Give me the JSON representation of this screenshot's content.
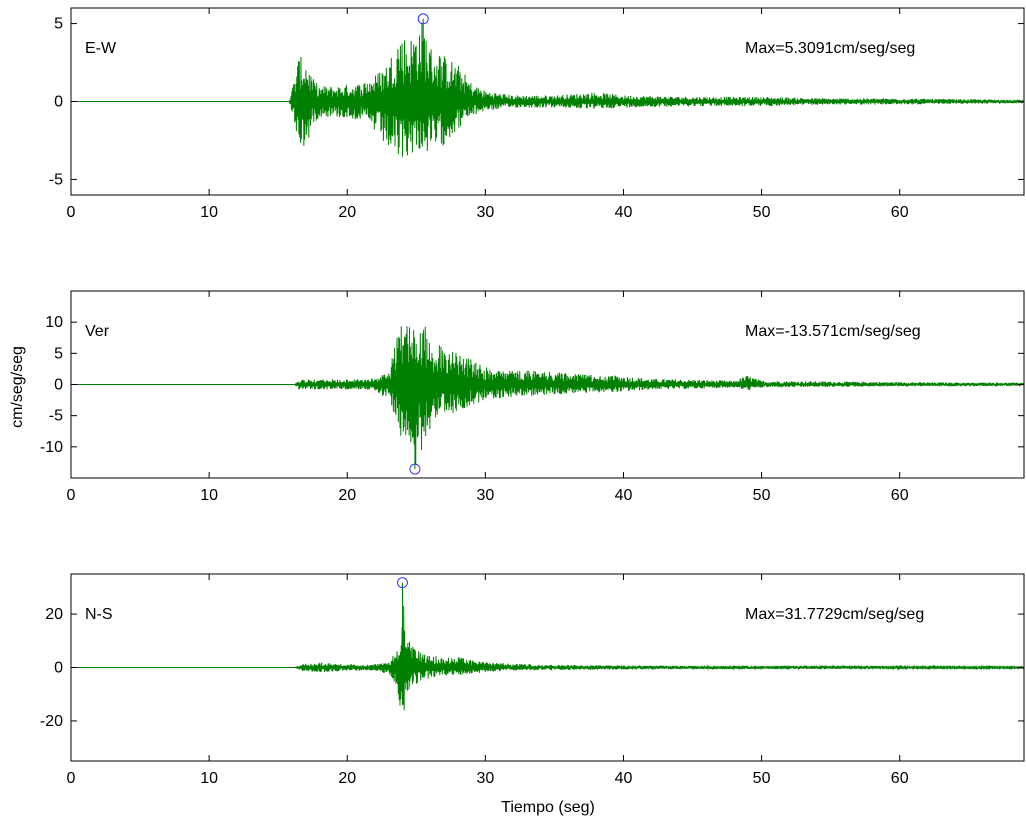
{
  "figure": {
    "ylabel": "cm/seg/seg",
    "xlabel": "Tiempo (seg)"
  },
  "colors": {
    "trace": "#008000",
    "marker": "#3333ff",
    "axes": "#000000",
    "background": "#ffffff"
  },
  "chart_data": [
    {
      "type": "line",
      "label": "E-W",
      "annotation": "Max=5.3091cm/seg/seg",
      "xlim": [
        0,
        69
      ],
      "ylim": [
        -6,
        6
      ],
      "xticks": [
        0,
        10,
        20,
        30,
        40,
        50,
        60
      ],
      "yticks": [
        -5,
        0,
        5
      ],
      "peak": {
        "x": 25.5,
        "y": 5.3091
      },
      "envelope": {
        "x": [
          0,
          15.8,
          16,
          16.5,
          17,
          17.5,
          18,
          19,
          20,
          21,
          22,
          23,
          23.8,
          24.5,
          25,
          25.5,
          26,
          27,
          28,
          29,
          30,
          32,
          35,
          38,
          40,
          45,
          50,
          55,
          60,
          65,
          69
        ],
        "upper": [
          0,
          0,
          0.8,
          2.9,
          2.8,
          1.5,
          1.0,
          1.0,
          1.1,
          1.2,
          1.7,
          2.6,
          4.5,
          4.0,
          4.8,
          5.3091,
          3.6,
          3.0,
          2.4,
          1.2,
          0.7,
          0.4,
          0.4,
          0.6,
          0.4,
          0.3,
          0.3,
          0.2,
          0.2,
          0.15,
          0.1
        ],
        "lower": [
          0,
          0,
          -0.8,
          -2.8,
          -3.2,
          -1.5,
          -1.0,
          -1.0,
          -1.1,
          -1.2,
          -2.0,
          -3.2,
          -3.9,
          -3.5,
          -3.1,
          -3.3,
          -3.4,
          -2.8,
          -1.8,
          -1.0,
          -0.6,
          -0.4,
          -0.4,
          -0.5,
          -0.4,
          -0.3,
          -0.3,
          -0.2,
          -0.2,
          -0.15,
          -0.1
        ]
      }
    },
    {
      "type": "line",
      "label": "Ver",
      "annotation": "Max=-13.571cm/seg/seg",
      "xlim": [
        0,
        69
      ],
      "ylim": [
        -15,
        15
      ],
      "xticks": [
        0,
        10,
        20,
        30,
        40,
        50,
        60
      ],
      "yticks": [
        -10,
        -5,
        0,
        5,
        10
      ],
      "peak": {
        "x": 24.9,
        "y": -13.571
      },
      "envelope": {
        "x": [
          0,
          16.2,
          16.5,
          18,
          20,
          22,
          23,
          23.8,
          24.5,
          24.9,
          25.3,
          26,
          27,
          28,
          29,
          30,
          32,
          35,
          38,
          40,
          42,
          45,
          48,
          49,
          50,
          55,
          60,
          65,
          69
        ],
        "upper": [
          0,
          0,
          0.8,
          0.8,
          0.8,
          1.0,
          2.0,
          9.5,
          10.0,
          13.2,
          11.5,
          8.0,
          6.0,
          5.0,
          4.0,
          2.8,
          2.5,
          2.0,
          1.5,
          1.4,
          0.9,
          0.8,
          0.6,
          1.5,
          0.6,
          0.5,
          0.4,
          0.3,
          0.3
        ],
        "lower": [
          0,
          0,
          -0.8,
          -0.8,
          -0.8,
          -1.0,
          -2.5,
          -8.0,
          -11.0,
          -13.571,
          -11.5,
          -7.5,
          -5.0,
          -4.5,
          -3.5,
          -2.5,
          -2.0,
          -1.6,
          -1.3,
          -1.2,
          -0.8,
          -0.7,
          -0.5,
          -1.0,
          -0.5,
          -0.4,
          -0.3,
          -0.3,
          -0.2
        ]
      }
    },
    {
      "type": "line",
      "label": "N-S",
      "annotation": "Max=31.7729cm/seg/seg",
      "xlim": [
        0,
        69
      ],
      "ylim": [
        -35,
        35
      ],
      "xticks": [
        0,
        10,
        20,
        30,
        40,
        50,
        60
      ],
      "yticks": [
        -20,
        0,
        20
      ],
      "peak": {
        "x": 24.0,
        "y": 31.7729
      },
      "envelope": {
        "x": [
          0,
          16.2,
          16.8,
          18,
          20,
          22,
          23,
          23.5,
          23.8,
          24.0,
          24.3,
          24.8,
          25.5,
          26,
          27,
          28,
          30,
          32,
          35,
          40,
          45,
          50,
          55,
          60,
          69
        ],
        "upper": [
          0,
          0,
          1.5,
          1.8,
          1.2,
          1.2,
          2.0,
          6.0,
          10.0,
          31.7729,
          14.0,
          8.0,
          5.0,
          5.0,
          3.5,
          4.0,
          2.0,
          1.5,
          1.0,
          0.8,
          0.6,
          0.5,
          0.8,
          0.4,
          0.3
        ],
        "lower": [
          0,
          0,
          -1.5,
          -1.8,
          -1.2,
          -1.2,
          -2.5,
          -8.0,
          -14.0,
          -20.0,
          -12.0,
          -7.0,
          -4.5,
          -4.0,
          -3.0,
          -3.0,
          -1.8,
          -1.2,
          -1.0,
          -0.8,
          -0.6,
          -0.5,
          -0.6,
          -0.4,
          -0.3
        ]
      }
    }
  ]
}
